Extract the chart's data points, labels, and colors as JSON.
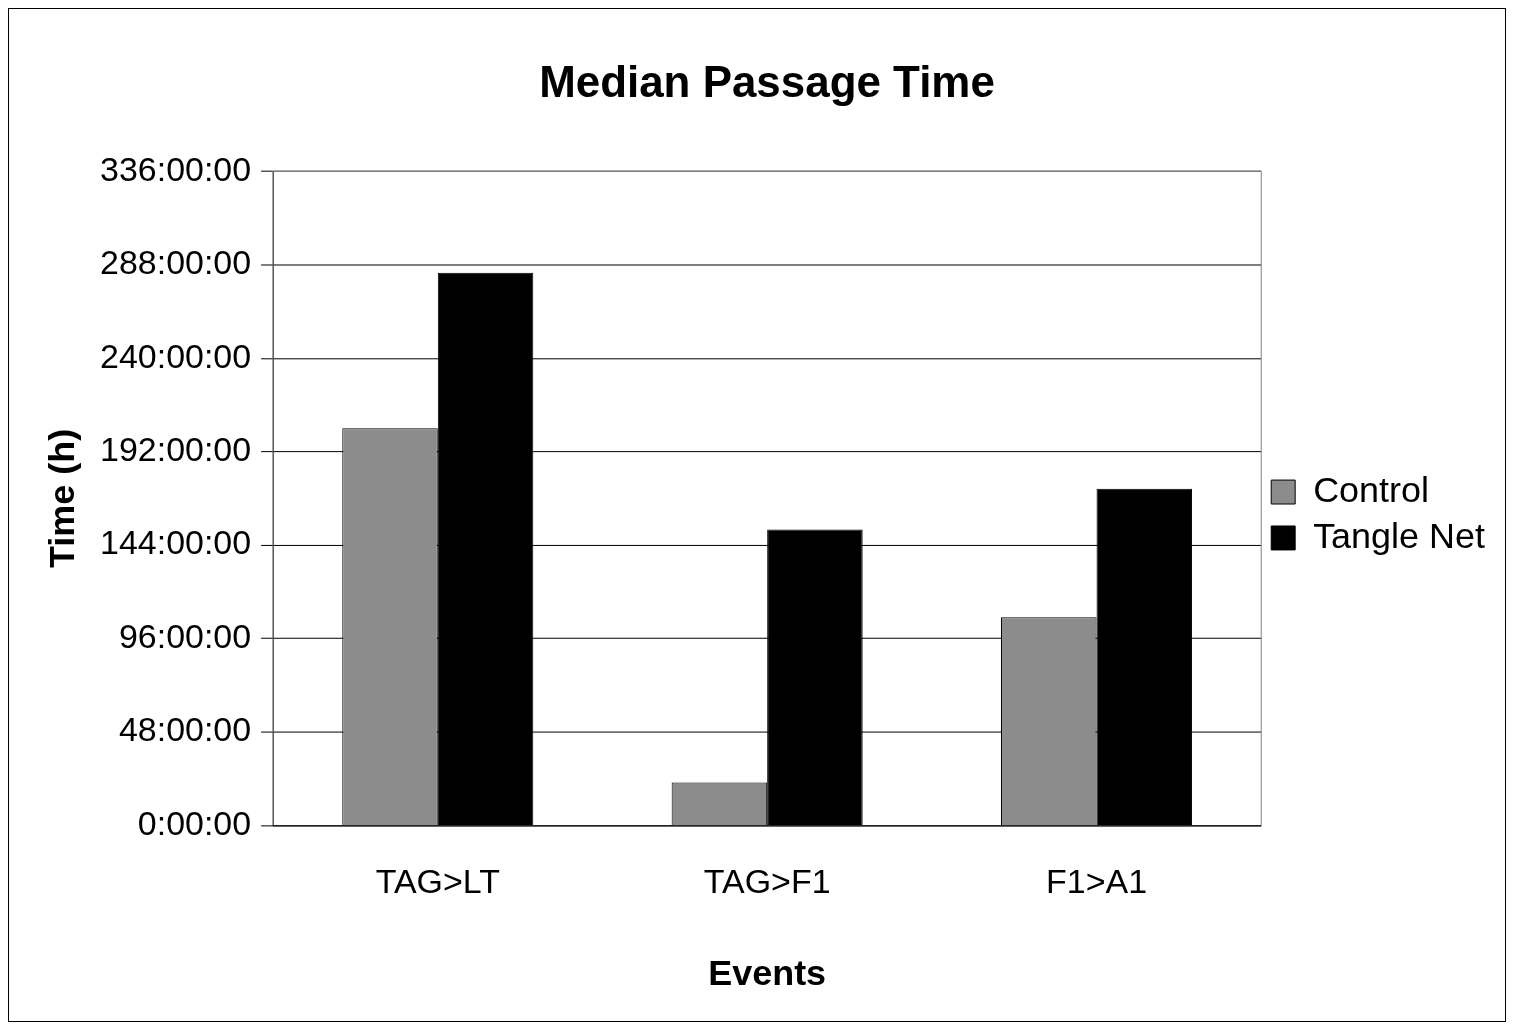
{
  "chart_data": {
    "type": "bar",
    "title": "Median Passage Time",
    "xlabel": "Events",
    "ylabel": "Time (h)",
    "categories": [
      "TAG>LT",
      "TAG>F1",
      "F1>A1"
    ],
    "series": [
      {
        "name": "Control",
        "color": "#8c8c8c",
        "values": [
          204,
          22,
          107
        ]
      },
      {
        "name": "Tangle Net",
        "color": "#000000",
        "values": [
          284,
          152,
          173
        ]
      }
    ],
    "ylim": [
      0,
      336
    ],
    "yticks": [
      {
        "value": 0,
        "label": "0:00:00"
      },
      {
        "value": 48,
        "label": "48:00:00"
      },
      {
        "value": 96,
        "label": "96:00:00"
      },
      {
        "value": 144,
        "label": "144:00:00"
      },
      {
        "value": 192,
        "label": "192:00:00"
      },
      {
        "value": 240,
        "label": "240:00:00"
      },
      {
        "value": 288,
        "label": "288:00:00"
      },
      {
        "value": 336,
        "label": "336:00:00"
      }
    ],
    "grid": "y",
    "legend": "right"
  }
}
